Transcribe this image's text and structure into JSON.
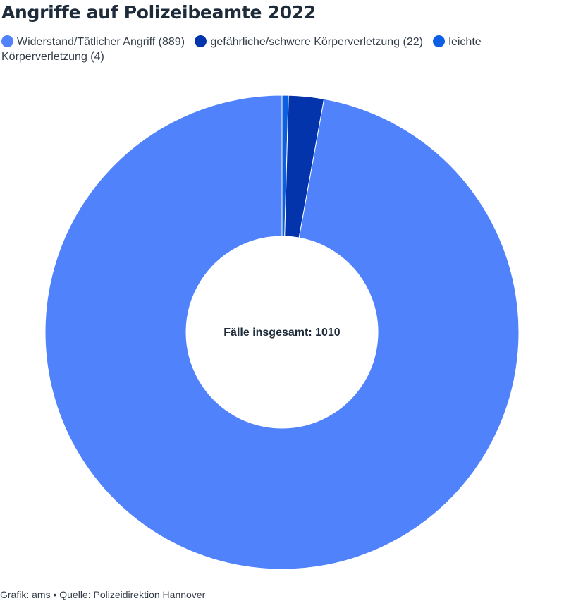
{
  "header": {
    "title": "Angriffe auf Polizeibeamte 2022"
  },
  "legend": [
    {
      "label": "Widerstand/Tätlicher Angriff (889)",
      "color": "#5082fb"
    },
    {
      "label": "gefährliche/schwere Körperverletzung (22)",
      "color": "#0434ab"
    },
    {
      "label": "leichte Körperverletzung (4)",
      "color": "#0c5fe0"
    }
  ],
  "center": {
    "label": "Fälle insgesamt: 1010"
  },
  "footer": {
    "credit": "Grafik: ams • Quelle: Polizeidirektion Hannover"
  },
  "chart_data": {
    "type": "pie",
    "donut": true,
    "title": "Angriffe auf Polizeibeamte 2022",
    "categories": [
      "leichte Körperverletzung",
      "gefährliche/schwere Körperverletzung",
      "Widerstand/Tätlicher Angriff"
    ],
    "values": [
      4,
      22,
      889
    ],
    "colors": [
      "#0c5fe0",
      "#0434ab",
      "#5082fb"
    ],
    "center_label": "Fälle insgesamt: 1010",
    "legend_position": "top"
  }
}
